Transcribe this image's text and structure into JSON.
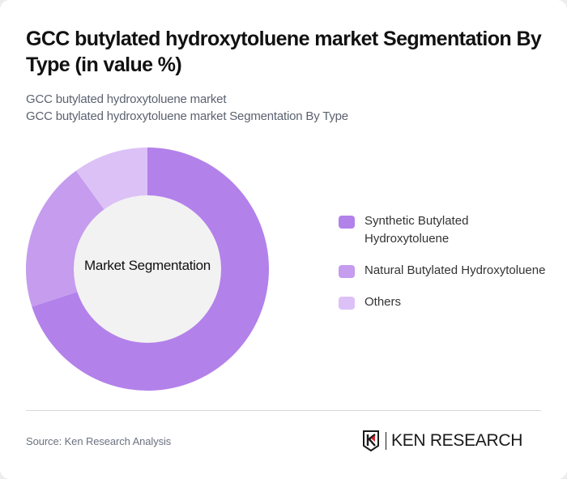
{
  "header": {
    "title": "GCC butylated hydroxytoluene market Segmentation By Type (in value %)",
    "subtitle_line1": "GCC butylated hydroxytoluene market",
    "subtitle_line2": "GCC butylated hydroxytoluene market Segmentation By Type"
  },
  "chart": {
    "center_label": "Market Segmentation"
  },
  "legend": {
    "items": [
      {
        "label": "Synthetic Butylated Hydroxytoluene",
        "color": "#b381ea"
      },
      {
        "label": "Natural Butylated Hydroxytoluene",
        "color": "#c59cee"
      },
      {
        "label": "Others",
        "color": "#dcc1f7"
      }
    ]
  },
  "footer": {
    "source": "Source: Ken Research Analysis",
    "logo_text": "KEN RESEARCH"
  },
  "chart_data": {
    "type": "pie",
    "subtype": "donut",
    "title": "GCC butylated hydroxytoluene market Segmentation By Type (in value %)",
    "center_label": "Market Segmentation",
    "categories": [
      "Synthetic Butylated Hydroxytoluene",
      "Natural Butylated Hydroxytoluene",
      "Others"
    ],
    "values": [
      70,
      20,
      10
    ],
    "colors": [
      "#b381ea",
      "#c59cee",
      "#dcc1f7"
    ],
    "legend_position": "right",
    "start_angle": "top, clockwise"
  }
}
